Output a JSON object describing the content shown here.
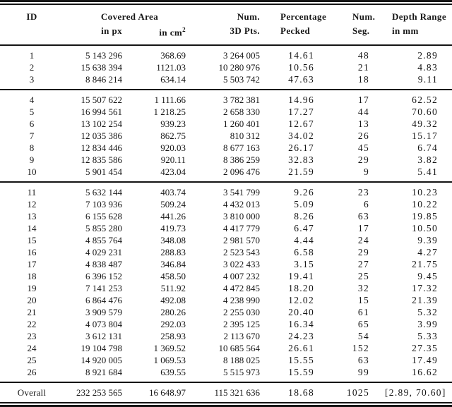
{
  "table": {
    "headers": {
      "id": "ID",
      "covered_area": "Covered Area",
      "in_px": "in px",
      "in_cm_base": "in cm",
      "in_cm_sup": "2",
      "num_3d_pts_line1": "Num.",
      "num_3d_pts_line2": "3D Pts.",
      "percentage_line1": "Percentage",
      "percentage_line2": "Pecked",
      "num_seg_line1": "Num.",
      "num_seg_line2": "Seg.",
      "depth_range_line1": "Depth Range",
      "depth_range_line2": "in mm"
    },
    "column_keys": [
      "id",
      "covered-area-px",
      "covered-area-cm2",
      "num-3d-pts",
      "percentage-pecked",
      "num-seg",
      "depth-range-mm"
    ],
    "groups": [
      {
        "rows": [
          [
            "1",
            "5 143 296",
            "368.69",
            "3 264 005",
            "14.61",
            "48",
            "2.89"
          ],
          [
            "2",
            "15 638 394",
            "1121.03",
            "10 280 976",
            "10.56",
            "21",
            "4.83"
          ],
          [
            "3",
            "8 846 214",
            "634.14",
            "5 503 742",
            "47.63",
            "18",
            "9.11"
          ]
        ]
      },
      {
        "rows": [
          [
            "4",
            "15 507 622",
            "1 111.66",
            "3 782 381",
            "14.96",
            "17",
            "62.52"
          ],
          [
            "5",
            "16 994 561",
            "1 218.25",
            "2 658 330",
            "17.27",
            "44",
            "70.60"
          ],
          [
            "6",
            "13 102 254",
            "939.23",
            "1 260 401",
            "12.67",
            "13",
            "49.32"
          ],
          [
            "7",
            "12 035 386",
            "862.75",
            "810 312",
            "34.02",
            "26",
            "15.17"
          ],
          [
            "8",
            "12 834 446",
            "920.03",
            "8 677 163",
            "26.17",
            "45",
            "6.74"
          ],
          [
            "9",
            "12 835 586",
            "920.11",
            "8 386 259",
            "32.83",
            "29",
            "3.82"
          ],
          [
            "10",
            "5 901 454",
            "423.04",
            "2 096 476",
            "21.59",
            "9",
            "5.41"
          ]
        ]
      },
      {
        "rows": [
          [
            "11",
            "5 632 144",
            "403.74",
            "3 541 799",
            "9.26",
            "23",
            "10.23"
          ],
          [
            "12",
            "7 103 936",
            "509.24",
            "4 432 013",
            "5.09",
            "6",
            "10.22"
          ],
          [
            "13",
            "6 155 628",
            "441.26",
            "3 810 000",
            "8.26",
            "63",
            "19.85"
          ],
          [
            "14",
            "5 855 280",
            "419.73",
            "4 417 779",
            "6.47",
            "17",
            "10.50"
          ],
          [
            "15",
            "4 855 764",
            "348.08",
            "2 981 570",
            "4.44",
            "24",
            "9.39"
          ],
          [
            "16",
            "4 029 231",
            "288.83",
            "2 523 543",
            "6.58",
            "29",
            "4.27"
          ],
          [
            "17",
            "4 838 487",
            "346.84",
            "3 022 433",
            "3.15",
            "27",
            "21.75"
          ],
          [
            "18",
            "6 396 152",
            "458.50",
            "4 007 232",
            "19.41",
            "25",
            "9.45"
          ],
          [
            "19",
            "7 141 253",
            "511.92",
            "4 472 845",
            "18.20",
            "32",
            "17.32"
          ],
          [
            "20",
            "6 864 476",
            "492.08",
            "4 238 990",
            "12.02",
            "15",
            "21.39"
          ],
          [
            "21",
            "3 909 579",
            "280.26",
            "2 255 030",
            "20.40",
            "61",
            "5.32"
          ],
          [
            "22",
            "4 073 804",
            "292.03",
            "2 395 125",
            "16.34",
            "65",
            "3.99"
          ],
          [
            "23",
            "3 612 131",
            "258.93",
            "2 113 670",
            "24.23",
            "54",
            "5.33"
          ],
          [
            "24",
            "19 104 798",
            "1 369.52",
            "10 685 564",
            "26.61",
            "152",
            "27.35"
          ],
          [
            "25",
            "14 920 005",
            "1 069.53",
            "8 188 025",
            "15.55",
            "63",
            "17.49"
          ],
          [
            "26",
            "8 921 684",
            "639.55",
            "5 515 973",
            "15.59",
            "99",
            "16.62"
          ]
        ]
      }
    ],
    "overall": {
      "cells": [
        "Overall",
        "232 253 565",
        "16 648.97",
        "115 321 636",
        "18.68",
        "1025",
        "[2.89, 70.60]"
      ]
    }
  }
}
